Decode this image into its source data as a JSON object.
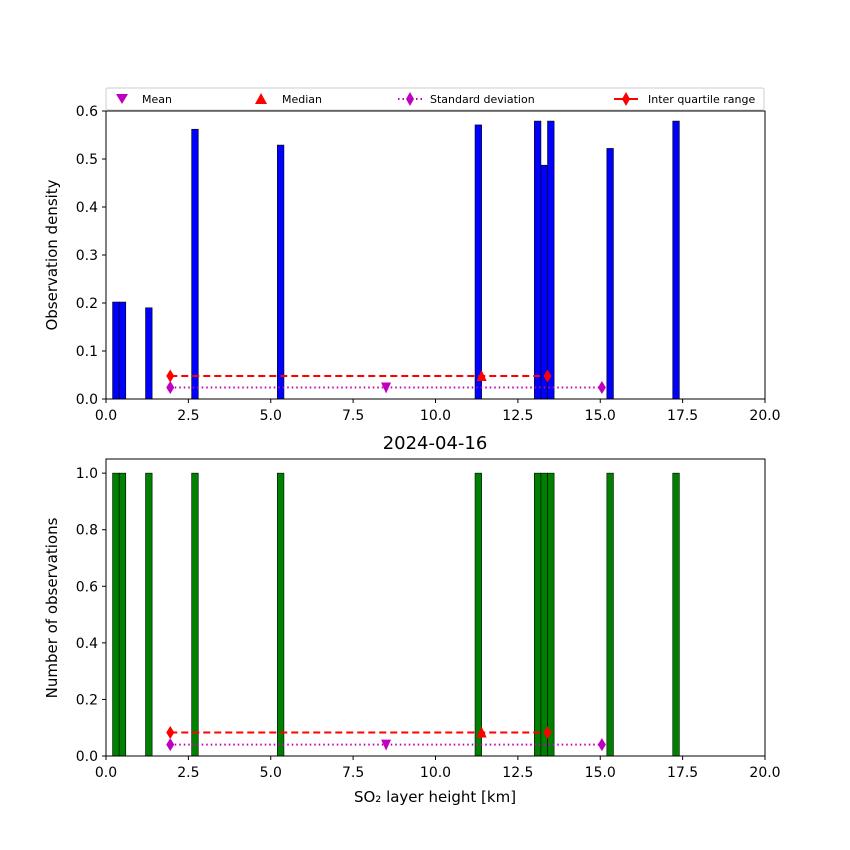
{
  "chart_data": [
    {
      "type": "bar",
      "subplot": "top",
      "title": "",
      "xlabel": "",
      "ylabel": "Observation density",
      "xlim": [
        0,
        20
      ],
      "ylim": [
        0,
        0.6
      ],
      "xticks": [
        "0.0",
        "2.5",
        "5.0",
        "7.5",
        "10.0",
        "12.5",
        "15.0",
        "17.5",
        "20.0"
      ],
      "yticks": [
        "0.0",
        "0.1",
        "0.2",
        "0.3",
        "0.4",
        "0.5",
        "0.6"
      ],
      "bar_color": "#0000ff",
      "bin_width": 0.2,
      "bars": [
        {
          "x": 0.3,
          "value": 0.202
        },
        {
          "x": 0.5,
          "value": 0.202
        },
        {
          "x": 1.3,
          "value": 0.19
        },
        {
          "x": 2.7,
          "value": 0.562
        },
        {
          "x": 5.3,
          "value": 0.529
        },
        {
          "x": 11.3,
          "value": 0.571
        },
        {
          "x": 13.1,
          "value": 0.579
        },
        {
          "x": 13.3,
          "value": 0.487
        },
        {
          "x": 13.5,
          "value": 0.579
        },
        {
          "x": 15.3,
          "value": 0.522
        },
        {
          "x": 17.3,
          "value": 0.579
        }
      ],
      "statistics": {
        "mean": {
          "x": 8.5,
          "y": 0.024
        },
        "median": {
          "x": 11.4,
          "y": 0.048
        },
        "std_range": {
          "x": [
            1.95,
            15.05
          ],
          "y": 0.024
        },
        "iqr_range": {
          "x": [
            1.95,
            13.4
          ],
          "y": 0.048
        }
      },
      "legend": {
        "placement": "top, above plot",
        "entries": [
          "Mean",
          "Median",
          "Standard deviation",
          "Inter quartile range"
        ]
      }
    },
    {
      "type": "bar",
      "subplot": "bottom",
      "title": "2024-04-16",
      "xlabel": "SO₂ layer height [km]",
      "ylabel": "Number of observations",
      "xlim": [
        0,
        20
      ],
      "ylim": [
        0,
        1.05
      ],
      "xticks": [
        "0.0",
        "2.5",
        "5.0",
        "7.5",
        "10.0",
        "12.5",
        "15.0",
        "17.5",
        "20.0"
      ],
      "yticks": [
        "0.0",
        "0.2",
        "0.4",
        "0.6",
        "0.8",
        "1.0"
      ],
      "bar_color": "#008000",
      "bin_width": 0.2,
      "bars": [
        {
          "x": 0.3,
          "value": 1
        },
        {
          "x": 0.5,
          "value": 1
        },
        {
          "x": 1.3,
          "value": 1
        },
        {
          "x": 2.7,
          "value": 1
        },
        {
          "x": 5.3,
          "value": 1
        },
        {
          "x": 11.3,
          "value": 1
        },
        {
          "x": 13.1,
          "value": 1
        },
        {
          "x": 13.3,
          "value": 1
        },
        {
          "x": 13.5,
          "value": 1
        },
        {
          "x": 15.3,
          "value": 1
        },
        {
          "x": 17.3,
          "value": 1
        }
      ],
      "statistics": {
        "mean": {
          "x": 8.5,
          "y": 0.04
        },
        "median": {
          "x": 11.4,
          "y": 0.083
        },
        "std_range": {
          "x": [
            1.95,
            15.05
          ],
          "y": 0.04
        },
        "iqr_range": {
          "x": [
            1.95,
            13.4
          ],
          "y": 0.083
        }
      }
    }
  ],
  "colors": {
    "mean": "#bf00bf",
    "median": "#ff0000",
    "std": "#bf00bf",
    "iqr": "#ff0000"
  }
}
